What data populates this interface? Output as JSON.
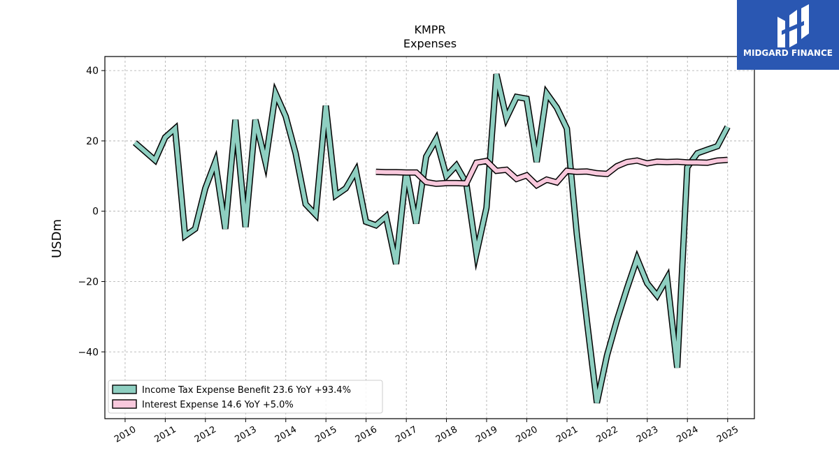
{
  "brand": {
    "name": "MIDGARD FINANCE",
    "color": "#2a57b2"
  },
  "chart_data": {
    "type": "line",
    "title": "KMPR",
    "subtitle": "Expenses",
    "xlabel": "",
    "ylabel": "USDm",
    "xlim": [
      "2009-07-01",
      "2025-09-01"
    ],
    "ylim": [
      -59,
      44
    ],
    "yticks": [
      40,
      20,
      0,
      -20,
      -40
    ],
    "ytick_labels": [
      "40",
      "20",
      "0",
      "−20",
      "−40"
    ],
    "xticks": [
      "2010",
      "2011",
      "2012",
      "2013",
      "2014",
      "2015",
      "2016",
      "2017",
      "2018",
      "2019",
      "2020",
      "2021",
      "2022",
      "2023",
      "2024",
      "2025"
    ],
    "grid": true,
    "legend_position": "lower-left",
    "series": [
      {
        "name": "Income Tax Expense Benefit",
        "legend_label": "Income Tax Expense Benefit  23.6 YoY +93.4%",
        "color": "#8ecfc1",
        "x": [
          "2010-03-31",
          "2010-06-30",
          "2010-09-30",
          "2010-12-31",
          "2011-03-31",
          "2011-06-30",
          "2011-09-30",
          "2011-12-31",
          "2012-03-31",
          "2012-06-30",
          "2012-09-30",
          "2012-12-31",
          "2013-03-31",
          "2013-06-30",
          "2013-09-30",
          "2013-12-31",
          "2014-03-31",
          "2014-06-30",
          "2014-09-30",
          "2014-12-31",
          "2015-03-31",
          "2015-06-30",
          "2015-09-30",
          "2015-12-31",
          "2016-03-31",
          "2016-06-30",
          "2016-09-30",
          "2016-12-31",
          "2017-03-31",
          "2017-06-30",
          "2017-09-30",
          "2017-12-31",
          "2018-03-31",
          "2018-06-30",
          "2018-09-30",
          "2018-12-31",
          "2019-03-31",
          "2019-06-30",
          "2019-09-30",
          "2019-12-31",
          "2020-03-31",
          "2020-06-30",
          "2020-09-30",
          "2020-12-31",
          "2021-03-31",
          "2021-06-30",
          "2021-09-30",
          "2021-12-31",
          "2022-03-31",
          "2022-06-30",
          "2022-09-30",
          "2022-12-31",
          "2023-03-31",
          "2023-06-30",
          "2023-09-30",
          "2023-12-31",
          "2024-03-31",
          "2024-06-30",
          "2024-09-30",
          "2024-12-31"
        ],
        "values": [
          19.5,
          17,
          14.5,
          21,
          23.5,
          -7,
          -5,
          6.5,
          14,
          -5,
          26,
          -4.5,
          26,
          14,
          33.5,
          27,
          16.5,
          2,
          -1,
          30,
          4.5,
          6.5,
          11.5,
          -3,
          -4,
          -1.5,
          -15,
          11.5,
          -3.5,
          15.5,
          20.5,
          10,
          13,
          8,
          -12,
          1,
          39,
          26.5,
          32.5,
          32,
          14,
          33.5,
          29.5,
          23.5,
          -6.5,
          -31,
          -54.5,
          -41,
          -31,
          -22,
          -13.5,
          -20.5,
          -24,
          -19,
          -44.5,
          12.5,
          16.5,
          17.5,
          18.5,
          24
        ]
      },
      {
        "name": "Interest Expense",
        "legend_label": "Interest Expense  14.6 YoY +5.0%",
        "color": "#f8c8dc",
        "x": [
          "2016-03-31",
          "2016-06-30",
          "2016-09-30",
          "2016-12-31",
          "2017-03-31",
          "2017-06-30",
          "2017-09-30",
          "2017-12-31",
          "2018-03-31",
          "2018-06-30",
          "2018-09-30",
          "2018-12-31",
          "2019-03-31",
          "2019-06-30",
          "2019-09-30",
          "2019-12-31",
          "2020-03-31",
          "2020-06-30",
          "2020-09-30",
          "2020-12-31",
          "2021-03-31",
          "2021-06-30",
          "2021-09-30",
          "2021-12-31",
          "2022-03-31",
          "2022-06-30",
          "2022-09-30",
          "2022-12-31",
          "2023-03-31",
          "2023-06-30",
          "2023-09-30",
          "2023-12-31",
          "2024-03-31",
          "2024-06-30",
          "2024-09-30",
          "2024-12-31"
        ],
        "values": [
          11.2,
          11.1,
          11.1,
          11.0,
          11.0,
          8.3,
          7.8,
          8.0,
          8.0,
          7.9,
          13.8,
          14.3,
          11.5,
          11.8,
          9.2,
          10.2,
          7.4,
          9.0,
          8.2,
          11.5,
          11.2,
          11.3,
          10.8,
          10.6,
          12.8,
          14.0,
          14.4,
          13.6,
          14.1,
          14.0,
          14.1,
          13.9,
          13.9,
          13.8,
          14.4,
          14.6
        ]
      }
    ]
  }
}
